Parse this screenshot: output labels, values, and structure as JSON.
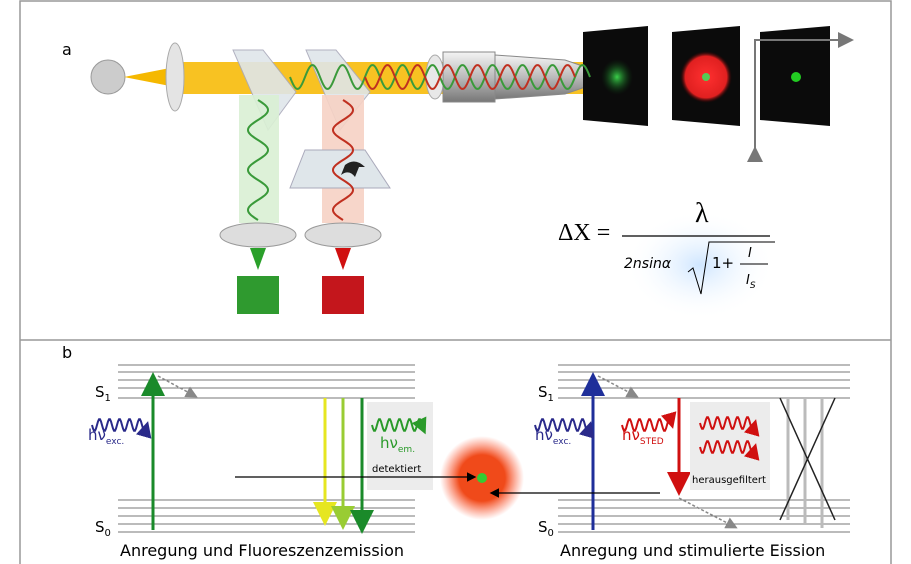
{
  "panel_a": {
    "label": "a",
    "formula": {
      "lhs": "ΔX =",
      "numerator": "λ",
      "denominator": "2nsinα",
      "root_term": "1+",
      "ratio_num": "I",
      "ratio_den": {
        "base": "I",
        "sub": "S"
      }
    }
  },
  "panel_b": {
    "label": "b",
    "left": {
      "s1": {
        "base": "S",
        "sub": "1"
      },
      "s0": {
        "base": "S",
        "sub": "0"
      },
      "excitation": {
        "base": "hν",
        "sub": "exc."
      },
      "emission": {
        "base": "hν",
        "sub": "em."
      },
      "detected": "detektiert",
      "caption": "Anregung und Fluoreszenzemission"
    },
    "right": {
      "s1": {
        "base": "S",
        "sub": "1"
      },
      "s0": {
        "base": "S",
        "sub": "0"
      },
      "excitation": {
        "base": "hν",
        "sub": "exc."
      },
      "sted": {
        "base": "hν",
        "sub": "STED"
      },
      "filtered": "herausgefiltert",
      "caption": "Anregung und stimulierte Eission"
    }
  }
}
